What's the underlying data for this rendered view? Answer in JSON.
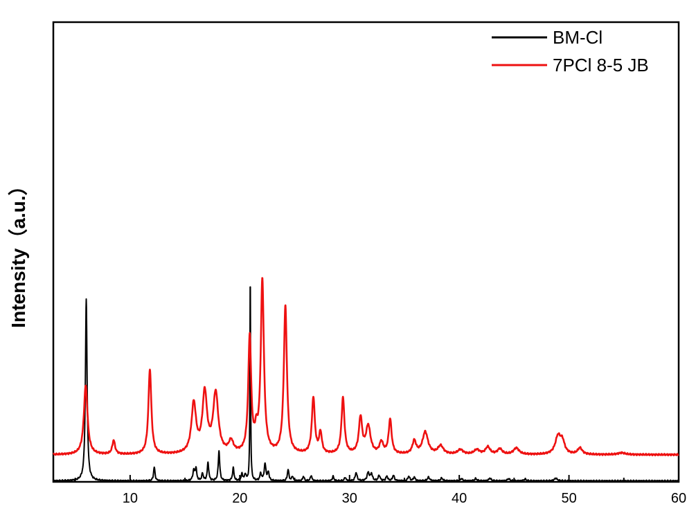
{
  "chart_data": {
    "type": "line",
    "title": "",
    "xlabel": "",
    "ylabel": "Intensity（a.u.）",
    "xlim": [
      3,
      60
    ],
    "ylim": [
      0,
      100
    ],
    "x_ticks": [
      10,
      20,
      30,
      40,
      50,
      60
    ],
    "x_tick_labels": [
      "10",
      "20",
      "30",
      "40",
      "50",
      "60"
    ],
    "y_ticks_shown": false,
    "grid": false,
    "legend_position": "top-right",
    "series": [
      {
        "name": "BM-Cl",
        "color": "#000000",
        "baseline": 0.2,
        "peaks": [
          [
            6.0,
            39.5,
            0.09
          ],
          [
            12.2,
            3.0,
            0.08
          ],
          [
            15.8,
            2.2,
            0.1
          ],
          [
            16.0,
            2.6,
            0.08
          ],
          [
            16.6,
            1.6,
            0.08
          ],
          [
            17.1,
            4.0,
            0.08
          ],
          [
            18.1,
            6.5,
            0.08
          ],
          [
            19.4,
            2.8,
            0.08
          ],
          [
            20.2,
            1.5,
            0.08
          ],
          [
            20.5,
            1.4,
            0.08
          ],
          [
            20.95,
            45.5,
            0.035
          ],
          [
            21.9,
            1.6,
            0.08
          ],
          [
            22.3,
            3.6,
            0.1
          ],
          [
            22.6,
            1.8,
            0.08
          ],
          [
            24.4,
            2.5,
            0.08
          ],
          [
            24.8,
            1.0,
            0.08
          ],
          [
            25.8,
            1.0,
            0.08
          ],
          [
            26.5,
            1.2,
            0.08
          ],
          [
            28.5,
            1.0,
            0.08
          ],
          [
            29.6,
            0.8,
            0.08
          ],
          [
            30.6,
            1.8,
            0.1
          ],
          [
            31.7,
            1.8,
            0.12
          ],
          [
            32.0,
            1.5,
            0.1
          ],
          [
            32.7,
            1.2,
            0.1
          ],
          [
            33.4,
            1.0,
            0.1
          ],
          [
            34.0,
            1.2,
            0.1
          ],
          [
            35.4,
            1.0,
            0.1
          ],
          [
            35.9,
            0.8,
            0.1
          ],
          [
            37.2,
            0.8,
            0.12
          ],
          [
            38.4,
            0.6,
            0.12
          ],
          [
            40.2,
            0.5,
            0.12
          ],
          [
            41.5,
            0.5,
            0.12
          ],
          [
            42.8,
            0.6,
            0.12
          ],
          [
            44.5,
            0.5,
            0.12
          ],
          [
            46.0,
            0.4,
            0.12
          ],
          [
            48.8,
            0.6,
            0.15
          ]
        ]
      },
      {
        "name": "7PCl 8-5 JB",
        "color": "#ee1111",
        "baseline": 5.9,
        "peaks": [
          [
            5.95,
            15.0,
            0.2
          ],
          [
            8.5,
            3.0,
            0.15
          ],
          [
            11.8,
            18.5,
            0.16
          ],
          [
            15.8,
            10.8,
            0.25
          ],
          [
            16.8,
            13.0,
            0.25
          ],
          [
            17.8,
            13.0,
            0.28
          ],
          [
            19.2,
            2.5,
            0.25
          ],
          [
            20.9,
            25.2,
            0.16
          ],
          [
            21.5,
            3.5,
            0.15
          ],
          [
            22.05,
            37.5,
            0.17
          ],
          [
            24.15,
            32.0,
            0.17
          ],
          [
            26.7,
            12.2,
            0.16
          ],
          [
            27.35,
            4.5,
            0.15
          ],
          [
            29.4,
            12.2,
            0.16
          ],
          [
            31.0,
            7.8,
            0.18
          ],
          [
            31.7,
            6.0,
            0.25
          ],
          [
            32.9,
            2.5,
            0.2
          ],
          [
            33.7,
            7.5,
            0.16
          ],
          [
            35.9,
            2.8,
            0.2
          ],
          [
            36.9,
            4.8,
            0.3
          ],
          [
            38.3,
            1.8,
            0.3
          ],
          [
            40.1,
            1.0,
            0.3
          ],
          [
            41.6,
            1.0,
            0.3
          ],
          [
            42.6,
            1.6,
            0.25
          ],
          [
            43.7,
            1.2,
            0.25
          ],
          [
            45.2,
            1.4,
            0.3
          ],
          [
            49.0,
            3.8,
            0.3
          ],
          [
            49.4,
            2.5,
            0.25
          ],
          [
            51.0,
            1.4,
            0.25
          ],
          [
            54.8,
            0.4,
            0.4
          ]
        ]
      }
    ]
  }
}
